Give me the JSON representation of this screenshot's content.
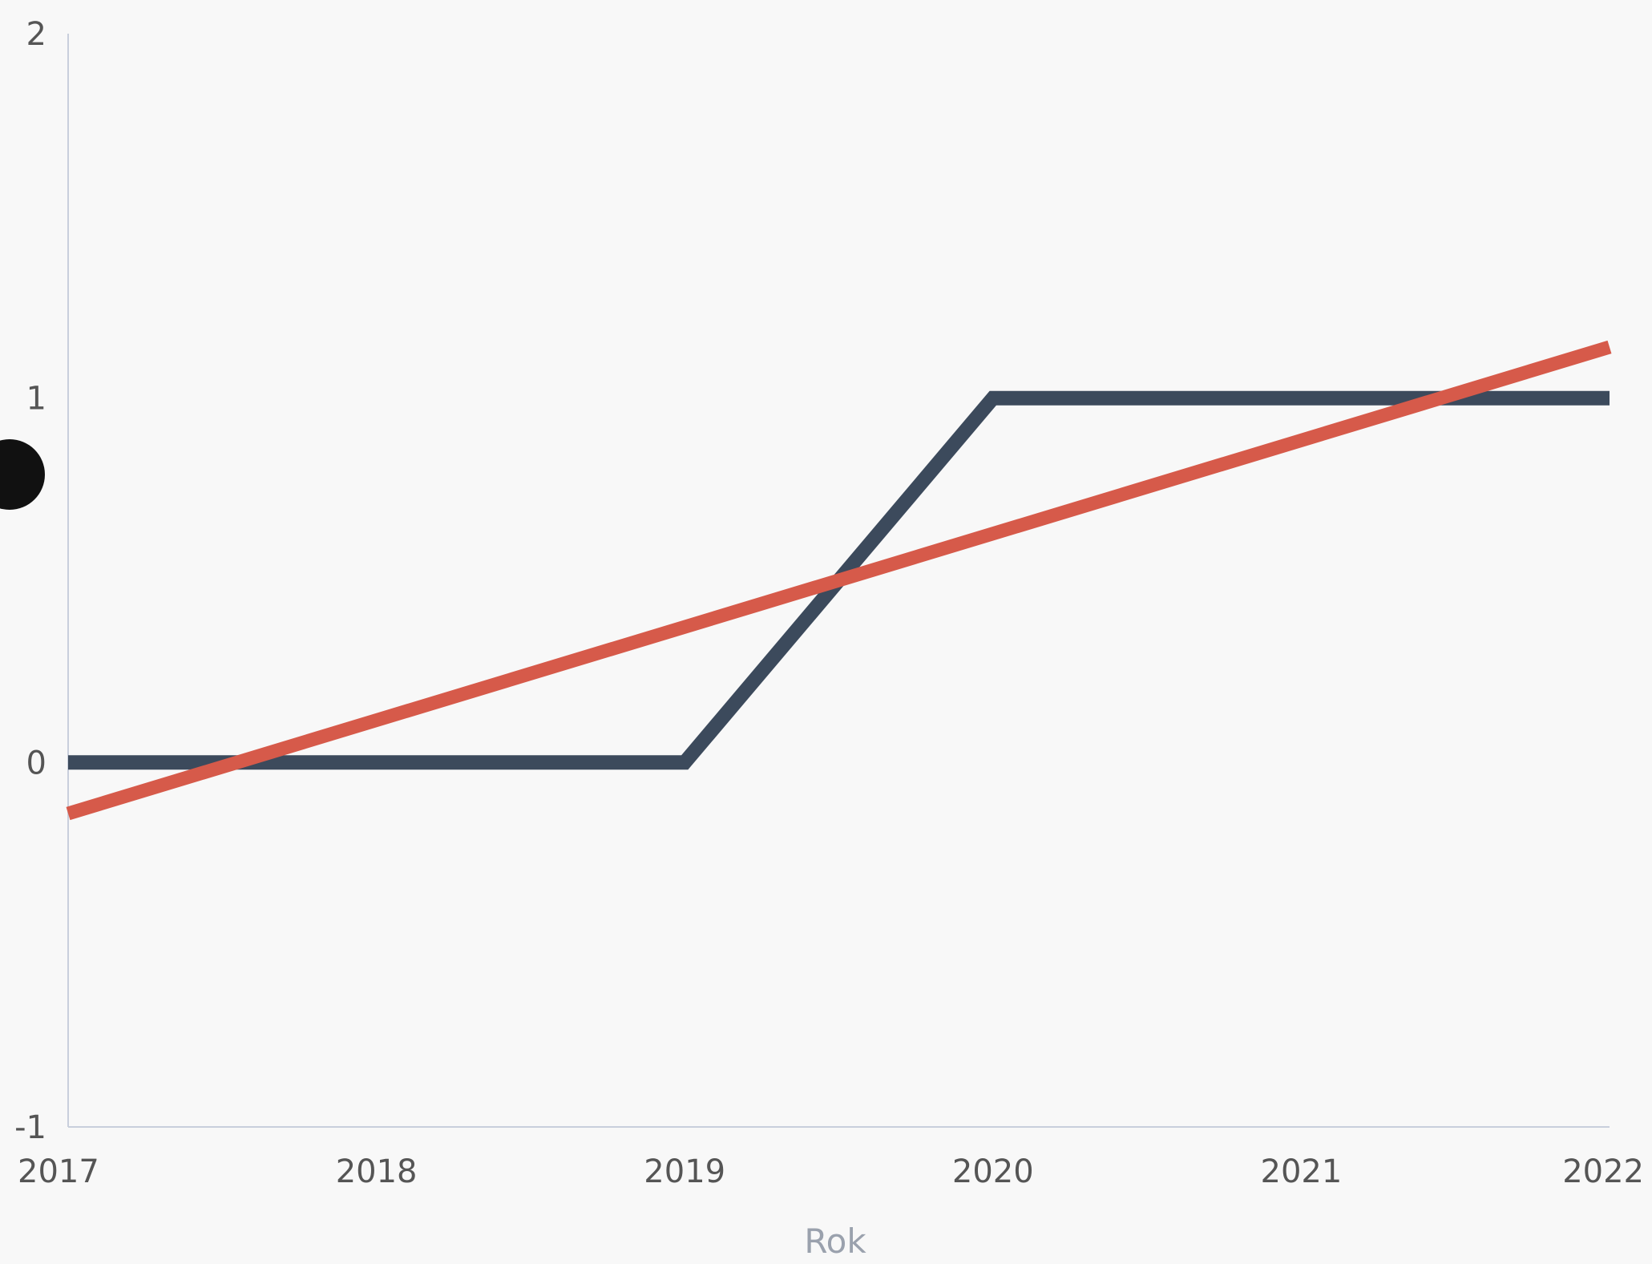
{
  "chart_data": {
    "type": "line",
    "title": "",
    "xlabel": "Rok",
    "ylabel": "",
    "x": [
      2017,
      2018,
      2019,
      2020,
      2021,
      2022
    ],
    "x_tick_labels": [
      "2017",
      "2018",
      "2019",
      "2020",
      "2021",
      "2022"
    ],
    "xlim": [
      2017,
      2022
    ],
    "y_tick_labels": [
      "2",
      "1",
      "0",
      "-1"
    ],
    "y_ticks": [
      2,
      1,
      0,
      -1
    ],
    "ylim": [
      -1,
      2
    ],
    "grid": false,
    "series": [
      {
        "x": [
          2017,
          2018,
          2019,
          2020,
          2021,
          2022
        ],
        "values": [
          0,
          0,
          0,
          1,
          1,
          1
        ],
        "color": "#3c4a5c",
        "style": "solid"
      },
      {
        "x": [
          2017,
          2022
        ],
        "values": [
          -0.14,
          1.14
        ],
        "color": "#d65a4a",
        "style": "solid",
        "role": "trend line"
      }
    ]
  }
}
